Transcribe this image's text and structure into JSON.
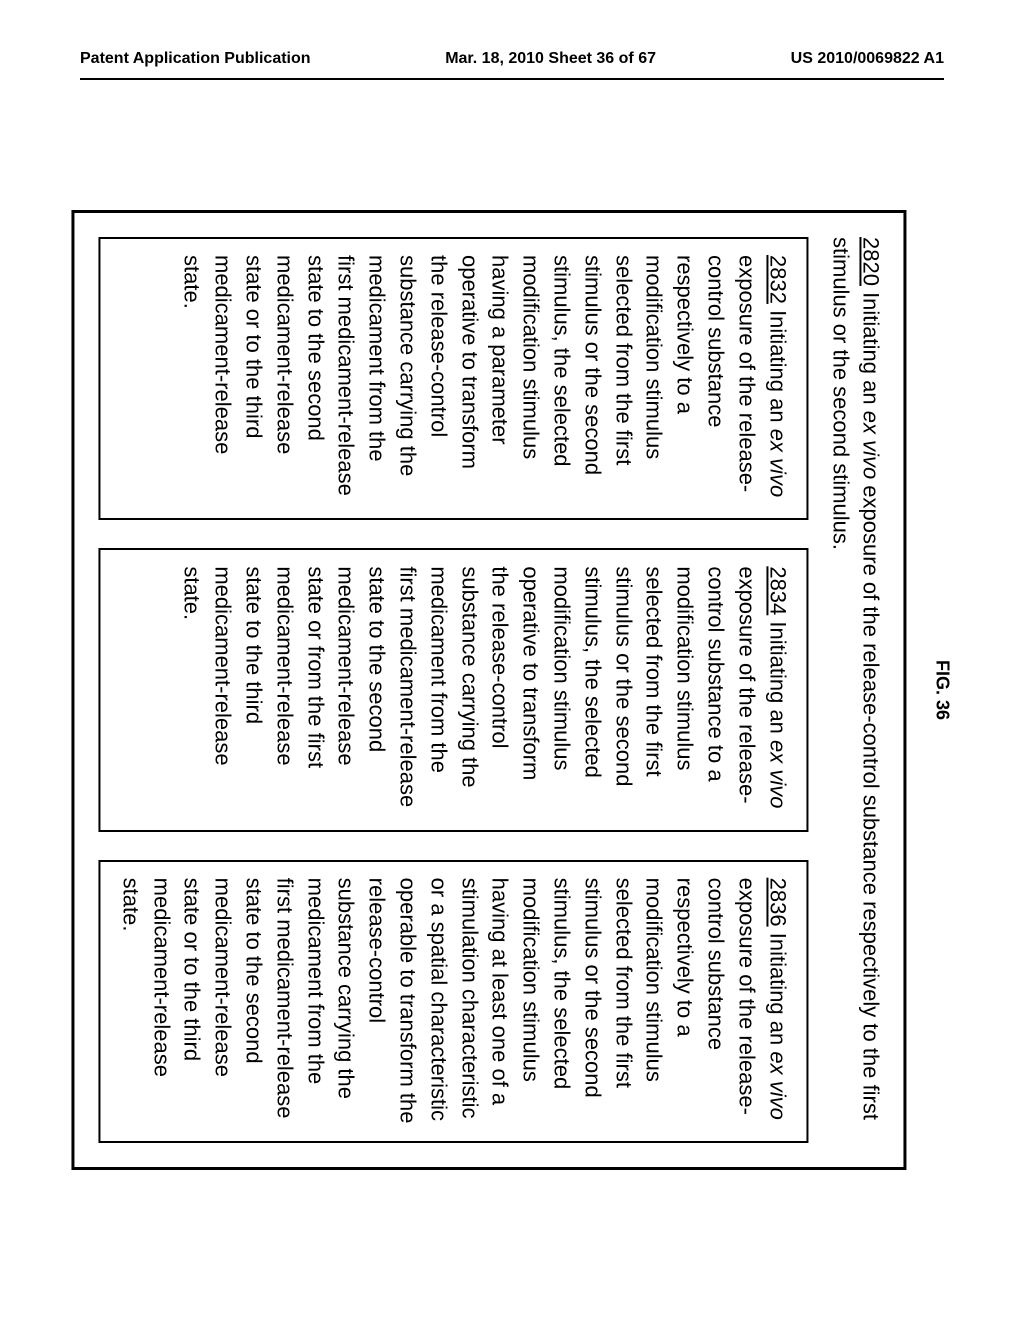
{
  "header": {
    "left": "Patent Application Publication",
    "center": "Mar. 18, 2010  Sheet 36 of 67",
    "right": "US 2010/0069822 A1"
  },
  "figure": {
    "label": "FIG. 36",
    "outer": {
      "num": "2820",
      "prefix": "  Initiating an ",
      "ital1": "ex vivo",
      "rest": " exposure of the release-control substance respectively to the first stimulus or the second stimulus."
    },
    "boxes": [
      {
        "num": "2832",
        "prefix": "  Initiating an ",
        "ital": "ex vivo",
        "body": " exposure of the release-control substance respectively to a modification stimulus selected from the first stimulus or the second stimulus, the selected modification stimulus having a parameter operative to transform the release-control substance carrying the medicament from the first medicament-release state to the second medicament-release state or to the third medicament-release state."
      },
      {
        "num": "2834",
        "prefix": "  Initiating an ",
        "ital": "ex vivo",
        "body": " exposure of the release-control substance to a modification stimulus selected from the first stimulus or the second stimulus, the selected modification stimulus operative to transform the release-control substance carrying the medicament from the first medicament-release state to the second medicament-release state or from the first medicament-release state to the third medicament-release state."
      },
      {
        "num": "2836",
        "prefix": "  Initiating an ",
        "ital": "ex vivo",
        "body": " exposure of the release-control substance respectively to a modification stimulus selected from the first stimulus or the second stimulus, the selected modification stimulus having at least one of a stimulation characteristic or a spatial characteristic operable to transform the release-control substance carrying the medicament from the first medicament-release state to the second medicament-release state or to the third medicament-release state."
      }
    ]
  }
}
